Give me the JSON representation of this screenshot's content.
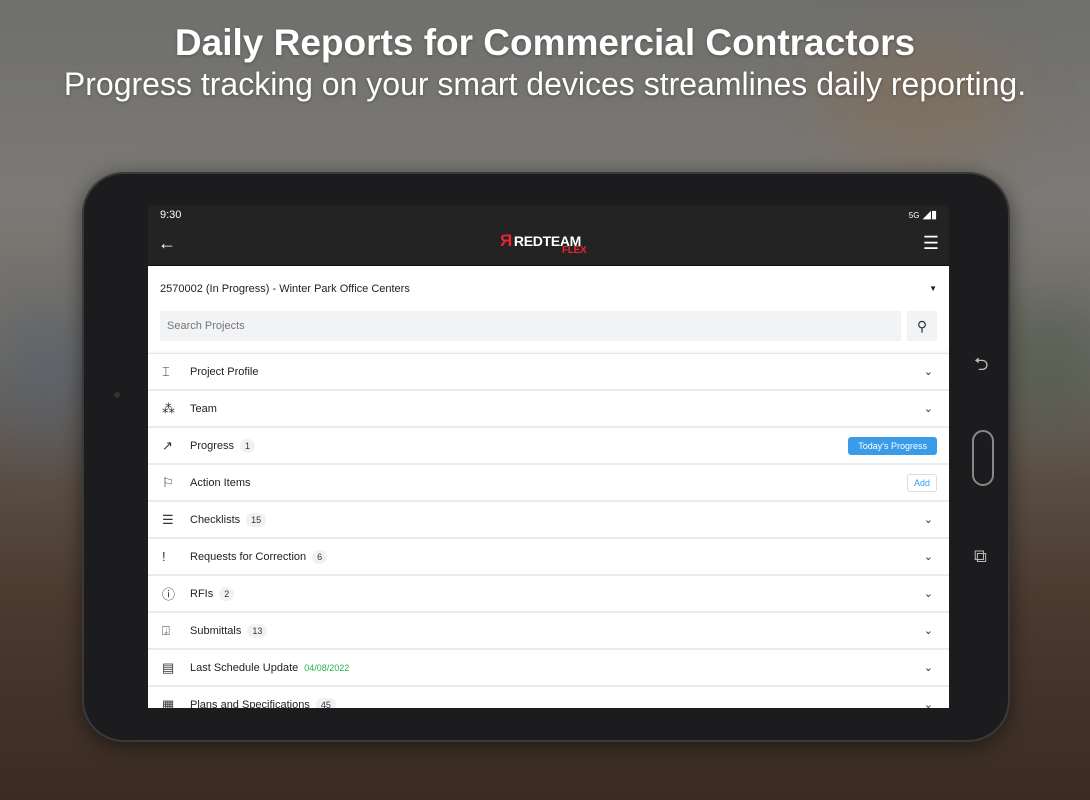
{
  "headline": {
    "title": "Daily Reports for Commercial Contractors",
    "subtitle": "Progress tracking on your smart devices streamlines daily reporting."
  },
  "status": {
    "time": "9:30",
    "network": "5G"
  },
  "appbar": {
    "logo_text": "REDTEAM",
    "logo_sub": "FLEX",
    "back_icon": "arrow-left-icon",
    "menu_icon": "hamburger-icon"
  },
  "project": {
    "selected": "2570002 (In Progress) - Winter Park Office Centers"
  },
  "search": {
    "placeholder": "Search Projects"
  },
  "colors": {
    "brand": "#e3262f",
    "accent": "#3a9be8",
    "date": "#22b24c"
  },
  "rows": [
    {
      "label": "Project Profile",
      "icon": "crane-icon",
      "glyph": "⌶"
    },
    {
      "label": "Team",
      "icon": "team-icon",
      "glyph": "⁂"
    },
    {
      "label": "Progress",
      "badge": "1",
      "icon": "trending-up-icon",
      "glyph": "↗",
      "button": "Today's Progress"
    },
    {
      "label": "Action Items",
      "icon": "flag-icon",
      "glyph": "⚐",
      "button": "Add"
    },
    {
      "label": "Checklists",
      "badge": "15",
      "icon": "checklist-icon",
      "glyph": "☰"
    },
    {
      "label": "Requests for Correction",
      "badge": "6",
      "icon": "exclamation-icon",
      "glyph": "!"
    },
    {
      "label": "RFIs",
      "badge": "2",
      "icon": "info-icon",
      "glyph": "ⓘ"
    },
    {
      "label": "Submittals",
      "badge": "13",
      "icon": "inbox-download-icon",
      "glyph": "⍗"
    },
    {
      "label": "Last Schedule Update",
      "date": "04/08/2022",
      "icon": "calendar-icon",
      "glyph": "▤"
    },
    {
      "label": "Plans and Specifications",
      "badge": "45",
      "icon": "plans-icon",
      "glyph": "▦"
    }
  ]
}
